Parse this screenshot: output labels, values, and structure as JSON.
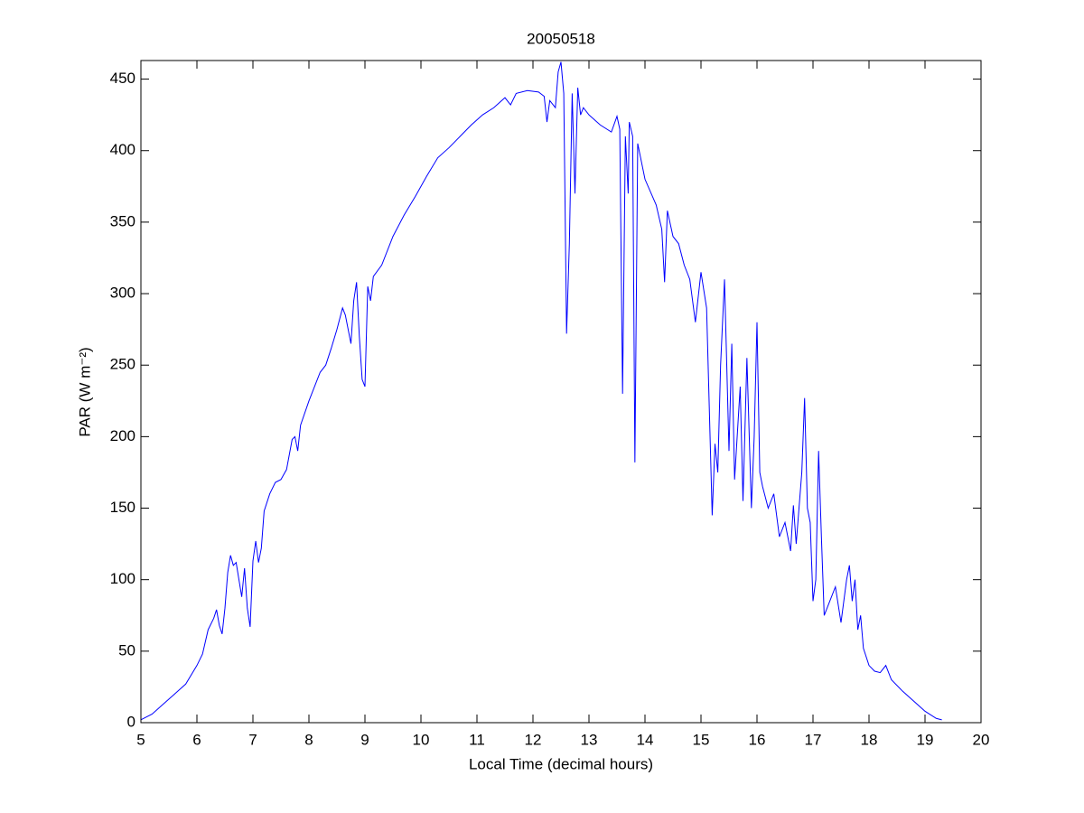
{
  "chart_data": {
    "type": "line",
    "title": "20050518",
    "xlabel": "Local Time (decimal hours)",
    "ylabel": "PAR (W m⁻²)",
    "x": [
      5.0,
      5.2,
      5.4,
      5.6,
      5.8,
      6.0,
      6.1,
      6.2,
      6.3,
      6.35,
      6.4,
      6.45,
      6.5,
      6.55,
      6.6,
      6.65,
      6.7,
      6.75,
      6.8,
      6.85,
      6.9,
      6.95,
      7.0,
      7.05,
      7.1,
      7.15,
      7.2,
      7.3,
      7.4,
      7.5,
      7.6,
      7.7,
      7.75,
      7.8,
      7.85,
      8.0,
      8.1,
      8.2,
      8.3,
      8.4,
      8.5,
      8.6,
      8.65,
      8.75,
      8.8,
      8.85,
      8.9,
      8.95,
      9.0,
      9.05,
      9.1,
      9.15,
      9.3,
      9.5,
      9.7,
      9.9,
      10.1,
      10.3,
      10.5,
      10.7,
      10.9,
      11.1,
      11.3,
      11.5,
      11.6,
      11.7,
      11.9,
      12.1,
      12.2,
      12.25,
      12.3,
      12.4,
      12.45,
      12.5,
      12.55,
      12.6,
      12.65,
      12.7,
      12.75,
      12.8,
      12.85,
      12.9,
      13.0,
      13.2,
      13.4,
      13.5,
      13.55,
      13.6,
      13.65,
      13.7,
      13.72,
      13.78,
      13.82,
      13.87,
      14.0,
      14.2,
      14.3,
      14.35,
      14.4,
      14.5,
      14.6,
      14.7,
      14.8,
      14.9,
      15.0,
      15.1,
      15.2,
      15.25,
      15.3,
      15.35,
      15.42,
      15.5,
      15.55,
      15.6,
      15.7,
      15.75,
      15.82,
      15.9,
      15.95,
      16.0,
      16.05,
      16.1,
      16.2,
      16.3,
      16.4,
      16.5,
      16.6,
      16.65,
      16.7,
      16.8,
      16.85,
      16.9,
      16.95,
      17.0,
      17.05,
      17.1,
      17.15,
      17.2,
      17.3,
      17.4,
      17.5,
      17.6,
      17.65,
      17.7,
      17.75,
      17.8,
      17.85,
      17.9,
      18.0,
      18.1,
      18.2,
      18.3,
      18.4,
      18.6,
      18.8,
      19.0,
      19.2,
      19.3
    ],
    "series": [
      {
        "name": "PAR",
        "color": "#0000ff",
        "values": [
          2,
          6,
          13,
          20,
          27,
          40,
          48,
          65,
          73,
          79,
          68,
          62,
          80,
          105,
          117,
          110,
          112,
          100,
          88,
          108,
          80,
          67,
          113,
          127,
          112,
          122,
          148,
          160,
          168,
          170,
          177,
          198,
          200,
          190,
          208,
          225,
          235,
          245,
          250,
          262,
          275,
          290,
          285,
          265,
          295,
          308,
          270,
          240,
          235,
          305,
          295,
          312,
          320,
          340,
          355,
          368,
          382,
          395,
          402,
          410,
          418,
          425,
          430,
          437,
          432,
          440,
          442,
          441,
          438,
          420,
          435,
          430,
          455,
          462,
          440,
          272,
          335,
          440,
          370,
          444,
          425,
          430,
          425,
          418,
          413,
          424,
          415,
          230,
          410,
          370,
          420,
          410,
          182,
          405,
          380,
          362,
          345,
          308,
          358,
          340,
          335,
          320,
          310,
          280,
          315,
          290,
          145,
          195,
          175,
          250,
          310,
          190,
          265,
          170,
          235,
          155,
          255,
          150,
          200,
          280,
          175,
          165,
          150,
          160,
          130,
          140,
          120,
          152,
          125,
          175,
          227,
          150,
          140,
          85,
          100,
          190,
          130,
          75,
          85,
          95,
          70,
          100,
          110,
          85,
          100,
          65,
          75,
          52,
          40,
          36,
          35,
          40,
          30,
          22,
          15,
          8,
          3,
          2
        ]
      }
    ],
    "xlim": [
      5,
      20
    ],
    "xticks": [
      5,
      6,
      7,
      8,
      9,
      10,
      11,
      12,
      13,
      14,
      15,
      16,
      17,
      18,
      19,
      20
    ],
    "ylim": [
      0,
      463
    ],
    "yticks": [
      0,
      50,
      100,
      150,
      200,
      250,
      300,
      350,
      400,
      450
    ],
    "grid": false
  }
}
